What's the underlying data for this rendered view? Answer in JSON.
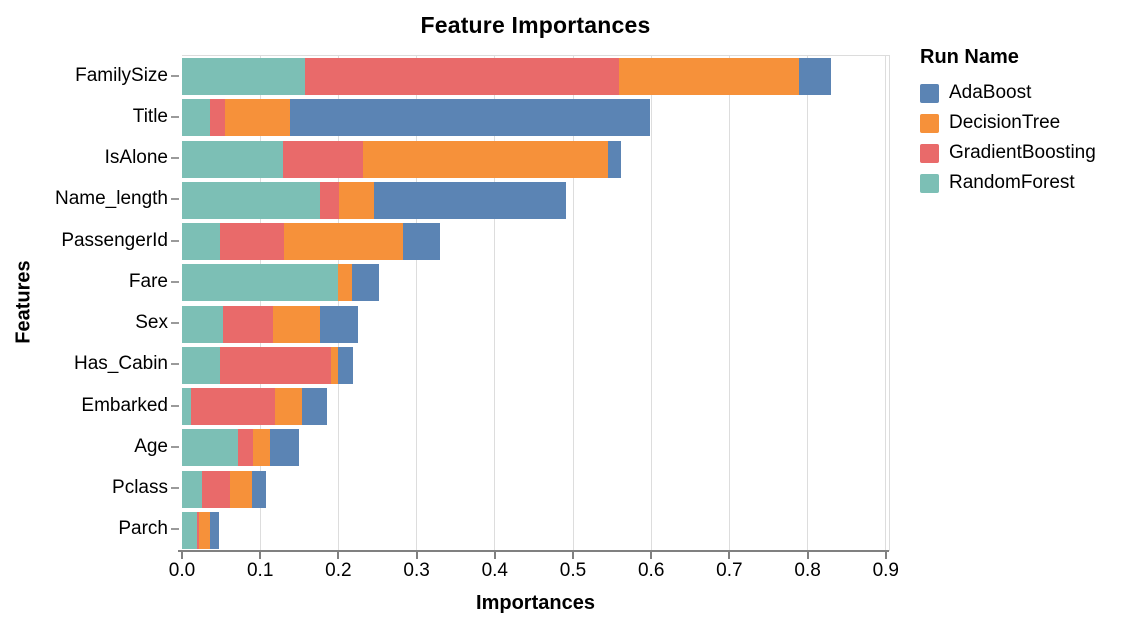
{
  "page": {
    "background": "#ffffff"
  },
  "chart_data": {
    "type": "bar",
    "orientation": "horizontal",
    "stacked": true,
    "title": "Feature Importances",
    "xlabel": "Importances",
    "ylabel": "Features",
    "legend_title": "Run Name",
    "legend_position": "right",
    "grid": true,
    "xlim": [
      0.0,
      0.9
    ],
    "x_ticks": [
      "0.0",
      "0.1",
      "0.2",
      "0.3",
      "0.4",
      "0.5",
      "0.6",
      "0.7",
      "0.8",
      "0.9"
    ],
    "categories": [
      "FamilySize",
      "Title",
      "IsAlone",
      "Name_length",
      "PassengerId",
      "Fare",
      "Sex",
      "Has_Cabin",
      "Embarked",
      "Age",
      "Pclass",
      "Parch"
    ],
    "series": [
      {
        "name": "AdaBoost",
        "color": "#5B84B4",
        "values": [
          0.041,
          0.461,
          0.016,
          0.246,
          0.048,
          0.035,
          0.049,
          0.02,
          0.032,
          0.036,
          0.017,
          0.011
        ]
      },
      {
        "name": "DecisionTree",
        "color": "#F6913A",
        "values": [
          0.23,
          0.083,
          0.314,
          0.044,
          0.151,
          0.017,
          0.06,
          0.009,
          0.034,
          0.022,
          0.029,
          0.014
        ]
      },
      {
        "name": "GradientBoosting",
        "color": "#E96A6A",
        "values": [
          0.402,
          0.019,
          0.102,
          0.025,
          0.082,
          0.0,
          0.063,
          0.141,
          0.108,
          0.019,
          0.035,
          0.003
        ]
      },
      {
        "name": "RandomForest",
        "color": "#7CBFB5",
        "values": [
          0.157,
          0.036,
          0.129,
          0.176,
          0.049,
          0.2,
          0.053,
          0.049,
          0.011,
          0.072,
          0.026,
          0.019
        ]
      }
    ],
    "stack_order": [
      "RandomForest",
      "GradientBoosting",
      "DecisionTree",
      "AdaBoost"
    ],
    "totals": [
      0.83,
      0.599,
      0.561,
      0.491,
      0.33,
      0.252,
      0.225,
      0.219,
      0.185,
      0.149,
      0.107,
      0.047
    ],
    "colors": {
      "grid": "#dddddd",
      "frame": "#dcdcdc",
      "axis": "#808080",
      "text": "#000000"
    }
  }
}
